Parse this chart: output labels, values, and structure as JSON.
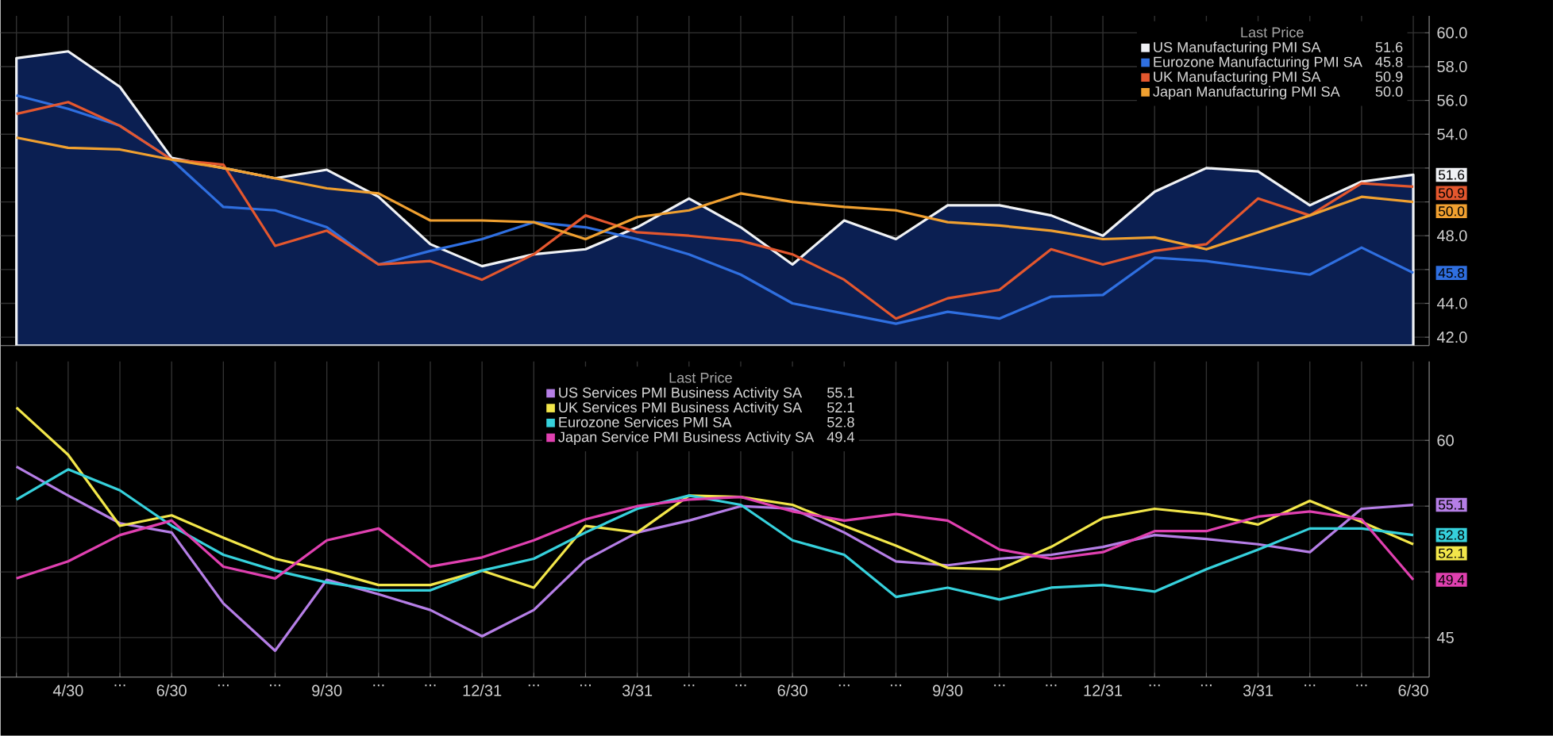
{
  "chart_data": [
    {
      "type": "line",
      "categories": [
        null,
        null,
        null,
        null,
        null,
        null,
        null,
        null,
        null,
        null,
        null,
        null,
        null,
        null,
        null,
        null,
        null,
        null,
        null,
        null,
        null,
        null,
        null,
        null,
        null,
        null,
        null,
        null
      ],
      "legend_title": "Last Price",
      "legend": "top right",
      "grid": true,
      "tick_labels": "y",
      "ylim": [
        41.5,
        61
      ],
      "yticks": [
        {
          "value": 42,
          "label": "42.0"
        },
        {
          "value": 44,
          "label": "44.0"
        },
        {
          "value": 46,
          "label": null
        },
        {
          "value": 48,
          "label": "48.0"
        },
        {
          "value": 50,
          "label": null
        },
        {
          "value": 52,
          "label": null
        },
        {
          "value": 54,
          "label": "54.0"
        },
        {
          "value": 56,
          "label": "56.0"
        },
        {
          "value": 58,
          "label": "58.0"
        },
        {
          "value": 60,
          "label": "60.0"
        }
      ],
      "series": [
        {
          "name": "US Manufacturing PMI SA",
          "type": "area",
          "color": "#0b1f52",
          "values": [
            58.5,
            58.9,
            56.8,
            52.6,
            52.0,
            51.4,
            51.9,
            50.3,
            47.5,
            46.2,
            46.9,
            47.2,
            48.5,
            50.2,
            48.5,
            46.3,
            48.9,
            47.8,
            49.8,
            49.8,
            49.2,
            48.0,
            50.6,
            52.0,
            51.8,
            49.8,
            51.2,
            51.6
          ],
          "value_labels": [
            null,
            null,
            null,
            null,
            null,
            null,
            null,
            null,
            null,
            null,
            null,
            null,
            null,
            null,
            null,
            null,
            null,
            null,
            null,
            null,
            null,
            null,
            null,
            null,
            null,
            null,
            null,
            "51.6"
          ]
        },
        {
          "name": "Eurozone Manufacturing PMI SA",
          "color": "#2f6fe0",
          "values": [
            56.3,
            55.5,
            54.5,
            52.5,
            49.7,
            49.5,
            48.5,
            46.3,
            47.1,
            47.8,
            48.8,
            48.5,
            47.8,
            46.9,
            45.7,
            44.0,
            43.4,
            42.8,
            43.5,
            43.1,
            44.4,
            44.5,
            46.7,
            46.5,
            46.1,
            45.7,
            47.3,
            45.8
          ],
          "value_labels": [
            null,
            null,
            null,
            null,
            null,
            null,
            null,
            null,
            null,
            null,
            null,
            null,
            null,
            null,
            null,
            null,
            null,
            null,
            null,
            null,
            null,
            null,
            null,
            null,
            null,
            null,
            null,
            "45.8"
          ]
        },
        {
          "name": "UK Manufacturing PMI SA",
          "color": "#e4572e",
          "values": [
            55.2,
            55.9,
            54.5,
            52.5,
            52.2,
            47.4,
            48.3,
            46.3,
            46.5,
            45.4,
            46.9,
            49.2,
            48.2,
            48.0,
            47.7,
            46.9,
            45.4,
            43.1,
            44.3,
            44.8,
            47.2,
            46.3,
            47.1,
            47.5,
            50.2,
            49.2,
            51.1,
            50.9
          ],
          "value_labels": [
            null,
            null,
            null,
            null,
            null,
            null,
            null,
            null,
            null,
            null,
            null,
            null,
            null,
            null,
            null,
            null,
            null,
            null,
            null,
            null,
            null,
            null,
            null,
            null,
            null,
            null,
            null,
            "50.9"
          ]
        },
        {
          "name": "Japan Manufacturing PMI SA",
          "color": "#f0a030",
          "values": [
            53.8,
            53.2,
            53.1,
            52.5,
            52.0,
            51.4,
            50.8,
            50.5,
            48.9,
            48.9,
            48.8,
            47.8,
            49.1,
            49.5,
            50.5,
            50.0,
            49.7,
            49.5,
            48.8,
            48.6,
            48.3,
            47.8,
            47.9,
            47.2,
            48.2,
            49.2,
            50.3,
            50.0
          ],
          "value_labels": [
            null,
            null,
            null,
            null,
            null,
            null,
            null,
            null,
            null,
            null,
            null,
            null,
            null,
            null,
            null,
            null,
            null,
            null,
            null,
            null,
            null,
            null,
            null,
            null,
            null,
            null,
            null,
            "50.0"
          ]
        }
      ]
    },
    {
      "type": "line",
      "categories": [
        null,
        "4/30",
        "...",
        "6/30",
        "...",
        "...",
        "9/30",
        "...",
        "...",
        "12/31",
        "...",
        "...",
        "3/31",
        "...",
        "...",
        "6/30",
        "...",
        "...",
        "9/30",
        "...",
        "...",
        "12/31",
        "...",
        "...",
        "3/31",
        "...",
        "...",
        "6/30"
      ],
      "legend_title": "Last Price",
      "legend": "top",
      "grid": true,
      "ylim": [
        42,
        66
      ],
      "yticks": [
        45,
        {
          "value": 50,
          "label": null
        },
        {
          "value": 55,
          "label": null
        },
        60
      ],
      "series": [
        {
          "name": "US Services PMI Business Activity SA",
          "color": "#b57ee6",
          "values": [
            58.0,
            55.8,
            53.7,
            53.0,
            47.6,
            44.0,
            49.4,
            48.3,
            47.1,
            45.1,
            47.1,
            50.9,
            53.0,
            53.9,
            55.0,
            54.8,
            53.0,
            50.8,
            50.5,
            51.0,
            51.3,
            51.9,
            52.8,
            52.5,
            52.1,
            51.5,
            54.8,
            55.1
          ],
          "value_labels": [
            null,
            null,
            null,
            null,
            null,
            null,
            null,
            null,
            null,
            null,
            null,
            null,
            null,
            null,
            null,
            null,
            null,
            null,
            null,
            null,
            null,
            null,
            null,
            null,
            null,
            null,
            null,
            "55.1"
          ]
        },
        {
          "name": "UK Services PMI Business Activity SA",
          "color": "#f2e64a",
          "values": [
            62.5,
            58.9,
            53.5,
            54.3,
            52.6,
            51.0,
            50.1,
            49.0,
            49.0,
            50.1,
            48.8,
            53.5,
            53.0,
            55.8,
            55.7,
            55.1,
            53.5,
            52.0,
            50.3,
            50.2,
            51.9,
            54.1,
            54.8,
            54.4,
            53.6,
            55.4,
            53.8,
            52.1
          ],
          "value_labels": [
            null,
            null,
            null,
            null,
            null,
            null,
            null,
            null,
            null,
            null,
            null,
            null,
            null,
            null,
            null,
            null,
            null,
            null,
            null,
            null,
            null,
            null,
            null,
            null,
            null,
            null,
            null,
            "52.1"
          ]
        },
        {
          "name": "Eurozone Services PMI SA",
          "color": "#36d1dc",
          "values": [
            55.5,
            57.8,
            56.2,
            53.5,
            51.3,
            50.1,
            49.2,
            48.6,
            48.6,
            50.1,
            51.0,
            53.0,
            54.8,
            55.8,
            55.1,
            52.4,
            51.3,
            48.1,
            48.8,
            47.9,
            48.8,
            49.0,
            48.5,
            50.2,
            51.7,
            53.3,
            53.3,
            52.8
          ],
          "value_labels": [
            null,
            null,
            null,
            null,
            null,
            null,
            null,
            null,
            null,
            null,
            null,
            null,
            null,
            null,
            null,
            null,
            null,
            null,
            null,
            null,
            null,
            null,
            null,
            null,
            null,
            null,
            null,
            "52.8"
          ]
        },
        {
          "name": "Japan Service PMI Business Activity SA",
          "color": "#e040b0",
          "values": [
            49.5,
            50.8,
            52.8,
            53.9,
            50.4,
            49.5,
            52.4,
            53.3,
            50.4,
            51.1,
            52.4,
            54.0,
            55.0,
            55.5,
            55.7,
            54.6,
            53.9,
            54.4,
            53.9,
            51.7,
            51.0,
            51.5,
            53.1,
            53.1,
            54.2,
            54.6,
            54.0,
            49.4
          ],
          "value_labels": [
            null,
            null,
            null,
            null,
            null,
            null,
            null,
            null,
            null,
            null,
            null,
            null,
            null,
            null,
            null,
            null,
            null,
            null,
            null,
            null,
            null,
            null,
            null,
            null,
            null,
            null,
            null,
            "49.4"
          ]
        }
      ]
    }
  ]
}
